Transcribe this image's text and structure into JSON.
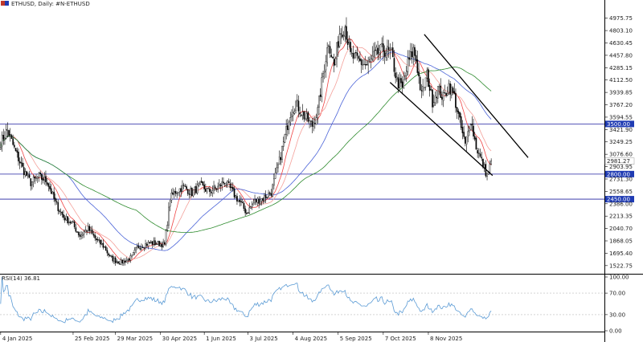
{
  "header": {
    "title": "ETHUSD, Daily: #N-ETHUSD"
  },
  "rsi_panel": {
    "label": "RSI(14) 36.81"
  },
  "colors": {
    "bull": "#ffffff",
    "bear": "#000000",
    "wick": "#000000",
    "sma_fast": "#ef4444",
    "sma_mid": "#f4a09a",
    "sma_slow": "#4a63d8",
    "sma_200": "#2e8b2e",
    "level": "#2020a0",
    "level_tag": "#1f3bb3",
    "rsi": "#5b9bd5",
    "channel": "#000000",
    "last_price": "#ffffff"
  },
  "chart_data": [
    {
      "type": "candlestick",
      "title": "ETHUSD, Daily: #N-ETHUSD",
      "xlabel": "",
      "ylabel": "",
      "ylim": [
        1420,
        5140
      ],
      "y_ticks": [
        "4975.75",
        "4803.10",
        "4630.45",
        "4457.80",
        "4285.15",
        "4112.50",
        "3939.85",
        "3767.20",
        "3594.55",
        "3421.90",
        "3249.25",
        "3076.60",
        "2903.95",
        "2731.30",
        "2558.65",
        "2386.00",
        "2213.35",
        "2040.70",
        "1868.05",
        "1695.40",
        "1522.75"
      ],
      "y_tick_values": [
        4975.75,
        4803.1,
        4630.45,
        4457.8,
        4285.15,
        4112.5,
        3939.85,
        3767.2,
        3594.55,
        3421.9,
        3249.25,
        3076.6,
        2903.95,
        2731.3,
        2558.65,
        2386.0,
        2213.35,
        2040.7,
        1868.05,
        1695.4,
        1522.75
      ],
      "x_ticks": [
        "4 Jan 2025",
        "25 Feb 2025",
        "29 Mar 2025",
        "30 Apr 2025",
        "1 Jun 2025",
        "3 Jul 2025",
        "4 Aug 2025",
        "5 Sep 2025",
        "7 Oct 2025",
        "8 Nov 2025"
      ],
      "anchors": [
        {
          "i": 0,
          "p": 3250
        },
        {
          "i": 5,
          "p": 3420
        },
        {
          "i": 10,
          "p": 3150
        },
        {
          "i": 16,
          "p": 2880
        },
        {
          "i": 22,
          "p": 2680
        },
        {
          "i": 28,
          "p": 2760
        },
        {
          "i": 34,
          "p": 2700
        },
        {
          "i": 40,
          "p": 2400
        },
        {
          "i": 46,
          "p": 2200
        },
        {
          "i": 52,
          "p": 2120
        },
        {
          "i": 58,
          "p": 1940
        },
        {
          "i": 64,
          "p": 2040
        },
        {
          "i": 70,
          "p": 1880
        },
        {
          "i": 76,
          "p": 1780
        },
        {
          "i": 80,
          "p": 1640
        },
        {
          "i": 84,
          "p": 1590
        },
        {
          "i": 88,
          "p": 1570
        },
        {
          "i": 92,
          "p": 1600
        },
        {
          "i": 96,
          "p": 1640
        },
        {
          "i": 100,
          "p": 1780
        },
        {
          "i": 106,
          "p": 1820
        },
        {
          "i": 110,
          "p": 1840
        },
        {
          "i": 116,
          "p": 1830
        },
        {
          "i": 120,
          "p": 1810
        },
        {
          "i": 124,
          "p": 2460
        },
        {
          "i": 128,
          "p": 2560
        },
        {
          "i": 134,
          "p": 2620
        },
        {
          "i": 140,
          "p": 2540
        },
        {
          "i": 146,
          "p": 2640
        },
        {
          "i": 152,
          "p": 2560
        },
        {
          "i": 158,
          "p": 2600
        },
        {
          "i": 164,
          "p": 2700
        },
        {
          "i": 170,
          "p": 2540
        },
        {
          "i": 176,
          "p": 2380
        },
        {
          "i": 180,
          "p": 2260
        },
        {
          "i": 186,
          "p": 2420
        },
        {
          "i": 192,
          "p": 2460
        },
        {
          "i": 198,
          "p": 2550
        },
        {
          "i": 204,
          "p": 2980
        },
        {
          "i": 208,
          "p": 3320
        },
        {
          "i": 212,
          "p": 3660
        },
        {
          "i": 216,
          "p": 3790
        },
        {
          "i": 222,
          "p": 3610
        },
        {
          "i": 228,
          "p": 3480
        },
        {
          "i": 232,
          "p": 3680
        },
        {
          "i": 236,
          "p": 4200
        },
        {
          "i": 240,
          "p": 4660
        },
        {
          "i": 244,
          "p": 4300
        },
        {
          "i": 248,
          "p": 4770
        },
        {
          "i": 252,
          "p": 4870
        },
        {
          "i": 256,
          "p": 4450
        },
        {
          "i": 262,
          "p": 4380
        },
        {
          "i": 268,
          "p": 4310
        },
        {
          "i": 274,
          "p": 4460
        },
        {
          "i": 280,
          "p": 4540
        },
        {
          "i": 286,
          "p": 4470
        },
        {
          "i": 290,
          "p": 4100
        },
        {
          "i": 294,
          "p": 3990
        },
        {
          "i": 298,
          "p": 4340
        },
        {
          "i": 302,
          "p": 4530
        },
        {
          "i": 304,
          "p": 4400
        },
        {
          "i": 308,
          "p": 3900
        },
        {
          "i": 312,
          "p": 4180
        },
        {
          "i": 316,
          "p": 3820
        },
        {
          "i": 320,
          "p": 3990
        },
        {
          "i": 324,
          "p": 3860
        },
        {
          "i": 328,
          "p": 4040
        },
        {
          "i": 332,
          "p": 3880
        },
        {
          "i": 336,
          "p": 3520
        },
        {
          "i": 340,
          "p": 3200
        },
        {
          "i": 344,
          "p": 3560
        },
        {
          "i": 348,
          "p": 3180
        },
        {
          "i": 352,
          "p": 2980
        },
        {
          "i": 356,
          "p": 2780
        },
        {
          "i": 359,
          "p": 2960
        }
      ],
      "levels": [
        {
          "value": 3500,
          "label": "3500.00"
        },
        {
          "value": 2800,
          "label": "2800.00"
        },
        {
          "value": 2450,
          "label": "2450.00"
        }
      ],
      "channel_lines": [
        {
          "from": {
            "i": 310,
            "p": 4750
          },
          "to": {
            "i": 386,
            "p": 3030
          }
        },
        {
          "from": {
            "i": 285,
            "p": 4080
          },
          "to": {
            "i": 360,
            "p": 2780
          }
        }
      ],
      "moving_averages": [
        {
          "period": 10,
          "color_key": "sma_fast"
        },
        {
          "period": 20,
          "color_key": "sma_mid"
        },
        {
          "period": 50,
          "color_key": "sma_slow"
        },
        {
          "period": 100,
          "color_key": "sma_200"
        }
      ]
    },
    {
      "type": "line",
      "title": "RSI(14) 36.81",
      "xlabel": "",
      "ylabel": "",
      "ylim": [
        0,
        100
      ],
      "y_ticks": [
        "100.00",
        "70.00",
        "30.00",
        "0.00"
      ],
      "y_tick_values": [
        100,
        70,
        30,
        0
      ],
      "guides": [
        70,
        30
      ],
      "current": 36.81
    }
  ]
}
